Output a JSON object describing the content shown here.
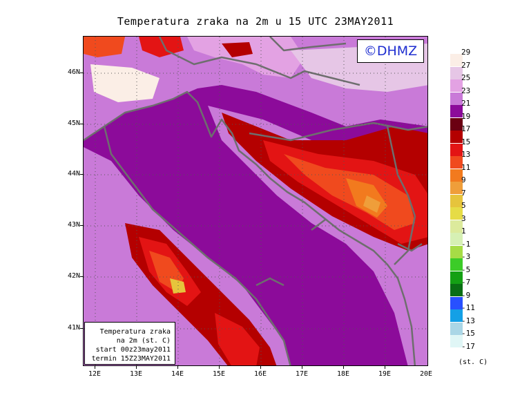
{
  "title": "Temperatura zraka na 2m u 15 UTC 23MAY2011",
  "credit": "©DHMZ",
  "info_box": {
    "lines": [
      "Temperatura zraka",
      "na 2m (st. C)",
      "start 00z23may2011",
      "termin 15Z23MAY2011"
    ]
  },
  "map": {
    "lat_labels": [
      "46N",
      "45N",
      "44N",
      "43N",
      "42N",
      "41N"
    ],
    "lon_labels": [
      "12E",
      "13E",
      "14E",
      "15E",
      "16E",
      "17E",
      "18E",
      "19E",
      "20E"
    ]
  },
  "legend": {
    "units": "(st. C)",
    "labels": [
      "29",
      "27",
      "25",
      "23",
      "21",
      "19",
      "17",
      "15",
      "13",
      "11",
      "9",
      "7",
      "5",
      "3",
      "1",
      "-1",
      "-3",
      "-5",
      "-7",
      "-9",
      "-11",
      "-13",
      "-15",
      "-17"
    ],
    "colors": [
      "#fbeee6",
      "#e6c6e6",
      "#e3a2e3",
      "#c97ad8",
      "#8c0b9a",
      "#6b0012",
      "#b40000",
      "#e31414",
      "#f04a1e",
      "#f27a1e",
      "#ef9e3a",
      "#e6c43c",
      "#e6dc46",
      "#dcea9c",
      "#d6f0b4",
      "#a6dc46",
      "#3ccc28",
      "#14a014",
      "#0a6e14",
      "#2850ff",
      "#14a0e6",
      "#aad6e6",
      "#e0f6f6"
    ]
  },
  "colors": {
    "sea": "#8c0b9a",
    "coast": "#6e6e6e",
    "credit_text": "#1f2fd0"
  }
}
